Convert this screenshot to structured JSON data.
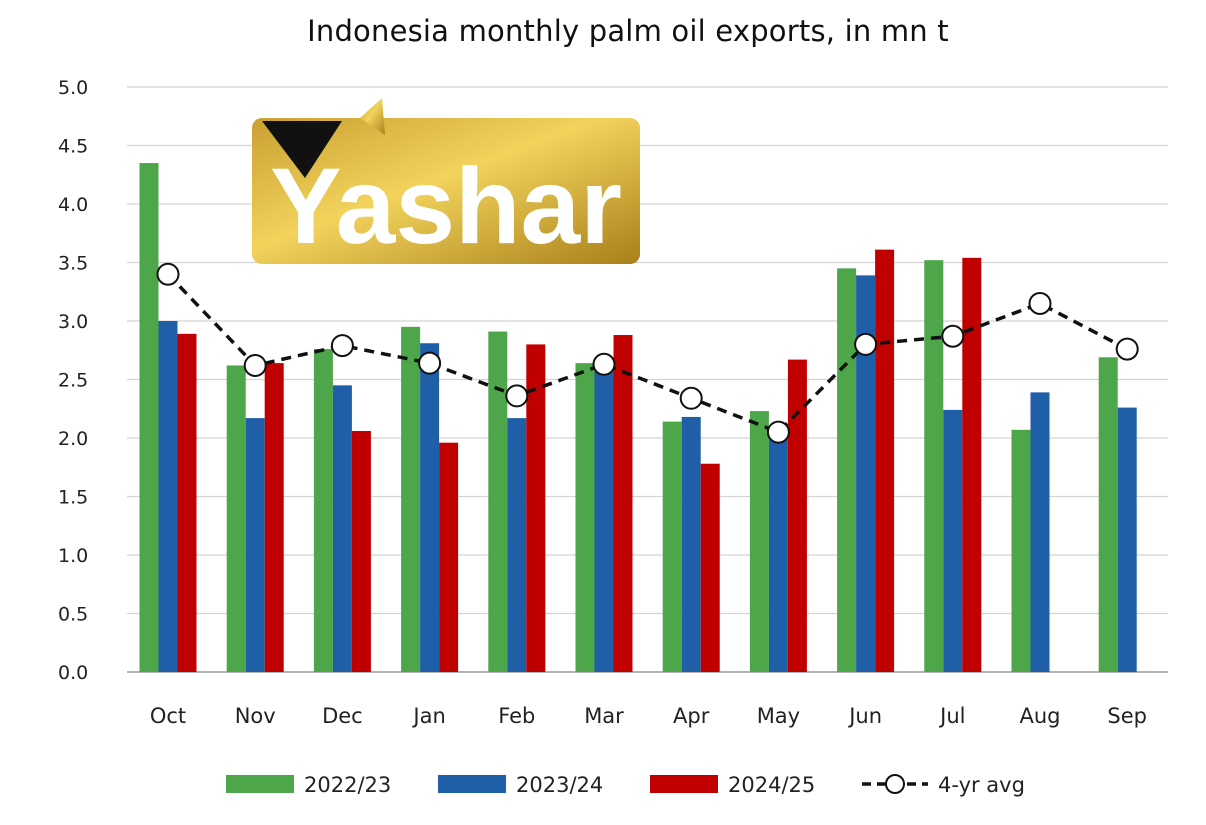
{
  "chart_data": {
    "type": "bar",
    "title": "Indonesia monthly palm oil exports, in mn t",
    "xlabel": "",
    "ylabel": "",
    "ylim": [
      0,
      5
    ],
    "yticks": [
      "0.0",
      "0.5",
      "1.0",
      "1.5",
      "2.0",
      "2.5",
      "3.0",
      "3.5",
      "4.0",
      "4.5",
      "5.0"
    ],
    "grid": true,
    "legend_position": "bottom",
    "categories": [
      "Oct",
      "Nov",
      "Dec",
      "Jan",
      "Feb",
      "Mar",
      "Apr",
      "May",
      "Jun",
      "Jul",
      "Aug",
      "Sep"
    ],
    "series": [
      {
        "name": "2022/23",
        "type": "bar",
        "color": "#4ea64a",
        "values": [
          4.35,
          2.62,
          2.76,
          2.95,
          2.91,
          2.64,
          2.14,
          2.23,
          3.45,
          3.52,
          2.07,
          2.69
        ]
      },
      {
        "name": "2023/24",
        "type": "bar",
        "color": "#1f5fa8",
        "values": [
          3.0,
          2.17,
          2.45,
          2.81,
          2.17,
          2.62,
          2.18,
          2.0,
          3.39,
          2.24,
          2.39,
          2.26
        ]
      },
      {
        "name": "2024/25",
        "type": "bar",
        "color": "#c00000",
        "values": [
          2.89,
          2.64,
          2.06,
          1.96,
          2.8,
          2.88,
          1.78,
          2.67,
          3.61,
          3.54,
          null,
          null
        ]
      },
      {
        "name": "4-yr avg",
        "type": "line",
        "style": "dashed",
        "marker": "open-circle",
        "color": "#111111",
        "values": [
          3.4,
          2.62,
          2.79,
          2.64,
          2.36,
          2.63,
          2.34,
          2.05,
          2.8,
          2.87,
          3.15,
          2.76
        ]
      }
    ]
  },
  "watermark": {
    "text": "Yashar",
    "colors": {
      "gold_dark": "#b48a1c",
      "gold_light": "#f0cf55",
      "triangle": "#111111"
    }
  }
}
